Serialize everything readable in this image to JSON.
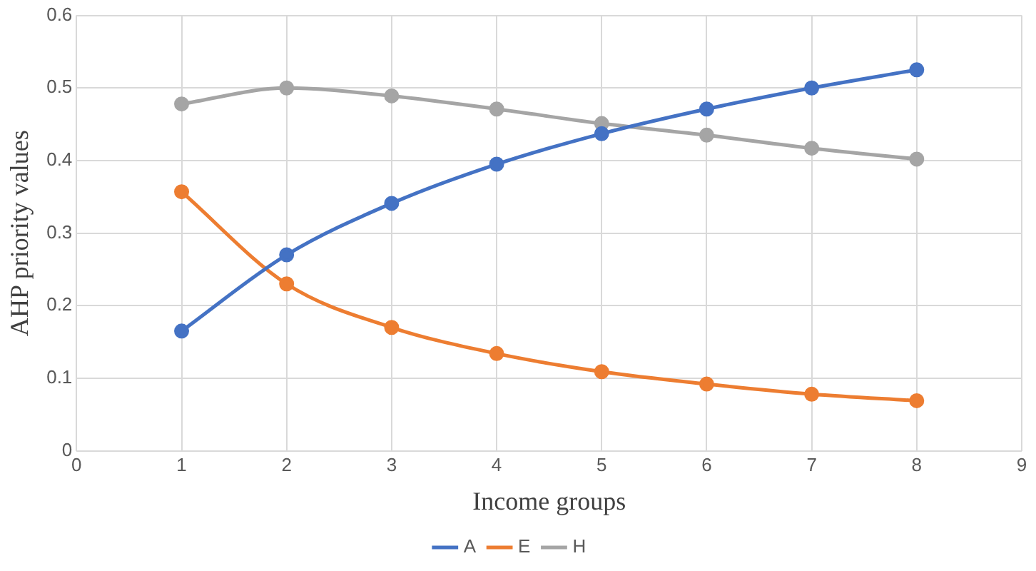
{
  "chart_data": {
    "type": "line",
    "xlabel": "Income groups",
    "ylabel": "AHP priority values",
    "x": [
      1,
      2,
      3,
      4,
      5,
      6,
      7,
      8
    ],
    "series": [
      {
        "name": "A",
        "color": "#4472c4",
        "values": [
          0.165,
          0.27,
          0.341,
          0.395,
          0.437,
          0.471,
          0.5,
          0.525
        ]
      },
      {
        "name": "E",
        "color": "#ed7d31",
        "values": [
          0.357,
          0.23,
          0.17,
          0.134,
          0.109,
          0.092,
          0.078,
          0.069
        ]
      },
      {
        "name": "H",
        "color": "#a5a5a5",
        "values": [
          0.478,
          0.5,
          0.489,
          0.471,
          0.451,
          0.435,
          0.417,
          0.402
        ]
      }
    ],
    "xlim": [
      0,
      9
    ],
    "xticks": [
      0,
      1,
      2,
      3,
      4,
      5,
      6,
      7,
      8,
      9
    ],
    "ylim": [
      0,
      0.6
    ],
    "yticks": [
      0,
      0.1,
      0.2,
      0.3,
      0.4,
      0.5,
      0.6
    ],
    "grid": true,
    "legend": "bottom",
    "marker": "circle",
    "line_style": "solid"
  }
}
